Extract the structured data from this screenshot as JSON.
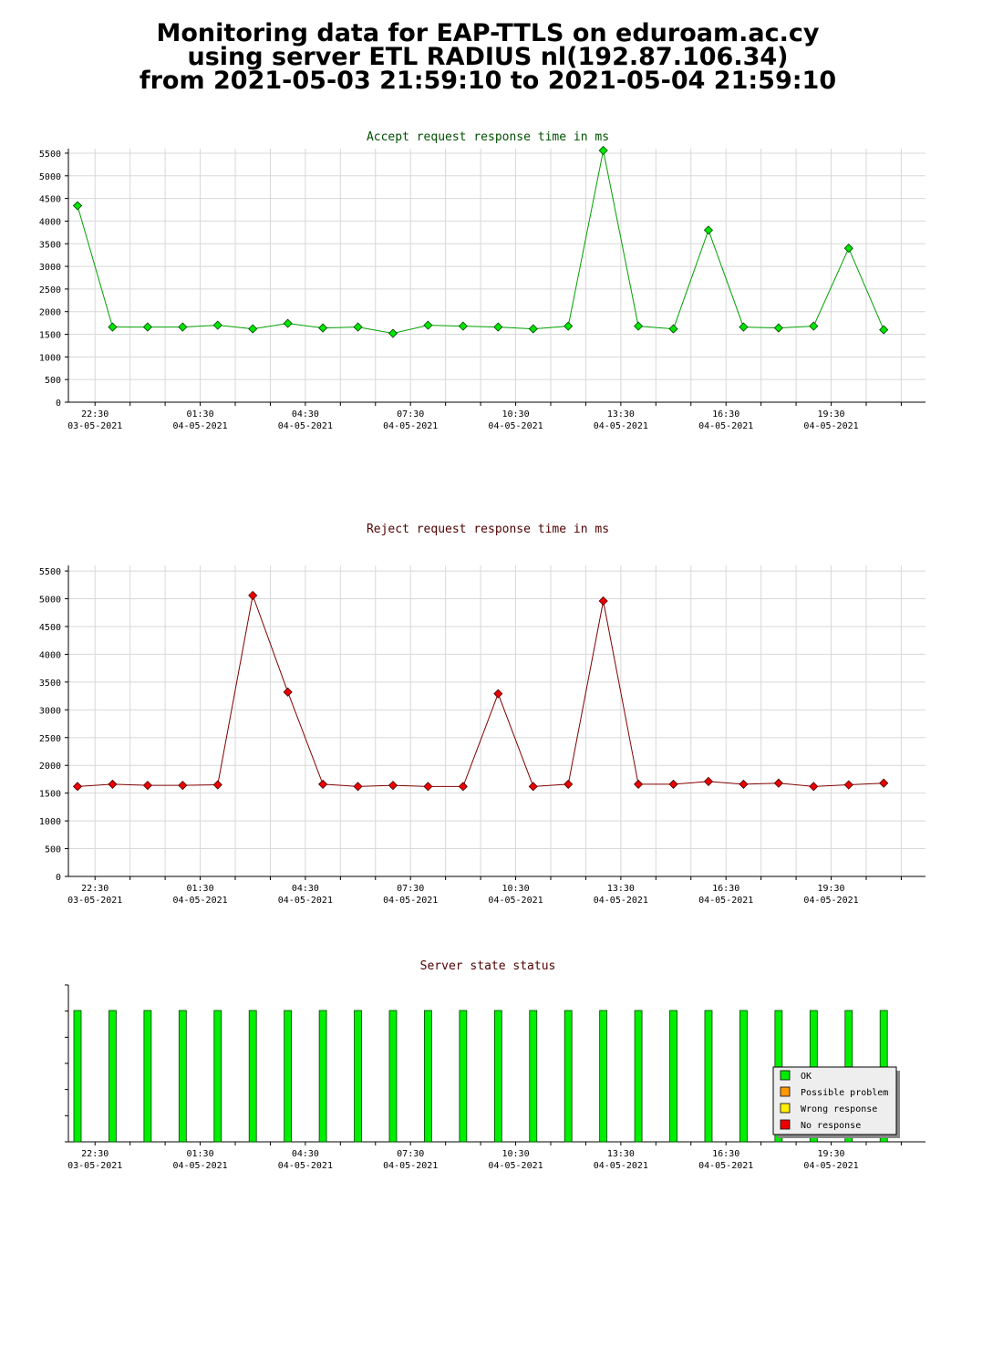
{
  "header": {
    "title_line1": "Monitoring data for EAP-TTLS on eduroam.ac.cy",
    "title_line2": "using server ETL RADIUS nl(192.87.106.34)",
    "title_line3": "from 2021-05-03 21:59:10 to 2021-05-04 21:59:10"
  },
  "colors": {
    "accept_series": "#00a000",
    "accept_point": "#00e600",
    "reject_series": "#800000",
    "reject_point": "#ee0000",
    "accept_title": "#005000",
    "reject_title": "#500000",
    "status_title": "#500000",
    "grid": "#d8d8d8",
    "status_ok": "#00ee00",
    "status_possible_problem": "#ff9900",
    "status_wrong_response": "#ffee00",
    "status_no_response": "#ee0000"
  },
  "time_ticks": [
    {
      "time": "22:30",
      "date": "03-05-2021"
    },
    {
      "time": "01:30",
      "date": "04-05-2021"
    },
    {
      "time": "04:30",
      "date": "04-05-2021"
    },
    {
      "time": "07:30",
      "date": "04-05-2021"
    },
    {
      "time": "10:30",
      "date": "04-05-2021"
    },
    {
      "time": "13:30",
      "date": "04-05-2021"
    },
    {
      "time": "16:30",
      "date": "04-05-2021"
    },
    {
      "time": "19:30",
      "date": "04-05-2021"
    }
  ],
  "chart_data": [
    {
      "type": "line",
      "title": "Accept request response time in ms",
      "x_axis": "time",
      "xlim": [
        "2021-05-03 22:00",
        "2021-05-04 21:59"
      ],
      "ylim": [
        0,
        5600
      ],
      "yticks": [
        0,
        500,
        1000,
        1500,
        2000,
        2500,
        3000,
        3500,
        4000,
        4500,
        5000,
        5500
      ],
      "grid": true,
      "x": [
        "2021-05-03 22:00",
        "2021-05-03 23:00",
        "2021-05-04 00:00",
        "2021-05-04 01:00",
        "2021-05-04 02:00",
        "2021-05-04 03:00",
        "2021-05-04 04:00",
        "2021-05-04 05:00",
        "2021-05-04 06:00",
        "2021-05-04 07:00",
        "2021-05-04 08:00",
        "2021-05-04 09:00",
        "2021-05-04 10:00",
        "2021-05-04 11:00",
        "2021-05-04 12:00",
        "2021-05-04 13:00",
        "2021-05-04 14:00",
        "2021-05-04 15:00",
        "2021-05-04 16:00",
        "2021-05-04 17:00",
        "2021-05-04 18:00",
        "2021-05-04 19:00",
        "2021-05-04 20:00",
        "2021-05-04 21:00"
      ],
      "values": [
        4340,
        1660,
        1660,
        1660,
        1700,
        1620,
        1740,
        1640,
        1660,
        1520,
        1700,
        1680,
        1660,
        1620,
        1680,
        5560,
        1680,
        1620,
        3800,
        1660,
        1640,
        1680,
        3400,
        1600
      ]
    },
    {
      "type": "line",
      "title": "Reject request response time in ms",
      "x_axis": "time",
      "xlim": [
        "2021-05-03 22:00",
        "2021-05-04 21:59"
      ],
      "ylim": [
        0,
        5600
      ],
      "yticks": [
        0,
        500,
        1000,
        1500,
        2000,
        2500,
        3000,
        3500,
        4000,
        4500,
        5000,
        5500
      ],
      "grid": true,
      "x": [
        "2021-05-03 22:00",
        "2021-05-03 23:00",
        "2021-05-04 00:00",
        "2021-05-04 01:00",
        "2021-05-04 02:00",
        "2021-05-04 03:00",
        "2021-05-04 04:00",
        "2021-05-04 05:00",
        "2021-05-04 06:00",
        "2021-05-04 07:00",
        "2021-05-04 08:00",
        "2021-05-04 09:00",
        "2021-05-04 10:00",
        "2021-05-04 11:00",
        "2021-05-04 12:00",
        "2021-05-04 13:00",
        "2021-05-04 14:00",
        "2021-05-04 15:00",
        "2021-05-04 16:00",
        "2021-05-04 17:00",
        "2021-05-04 18:00",
        "2021-05-04 19:00",
        "2021-05-04 20:00",
        "2021-05-04 21:00"
      ],
      "values": [
        1620,
        1660,
        1640,
        1640,
        1650,
        5060,
        3320,
        1660,
        1620,
        1640,
        1620,
        1620,
        3290,
        1620,
        1660,
        4960,
        1660,
        1660,
        1710,
        1660,
        1680,
        1620,
        1650,
        1680
      ]
    },
    {
      "type": "bar",
      "title": "Server state status",
      "x_axis": "time",
      "xlim": [
        "2021-05-03 22:00",
        "2021-05-04 21:59"
      ],
      "x": [
        "2021-05-03 22:00",
        "2021-05-03 23:00",
        "2021-05-04 00:00",
        "2021-05-04 01:00",
        "2021-05-04 02:00",
        "2021-05-04 03:00",
        "2021-05-04 04:00",
        "2021-05-04 05:00",
        "2021-05-04 06:00",
        "2021-05-04 07:00",
        "2021-05-04 08:00",
        "2021-05-04 09:00",
        "2021-05-04 10:00",
        "2021-05-04 11:00",
        "2021-05-04 12:00",
        "2021-05-04 13:00",
        "2021-05-04 14:00",
        "2021-05-04 15:00",
        "2021-05-04 16:00",
        "2021-05-04 17:00",
        "2021-05-04 18:00",
        "2021-05-04 19:00",
        "2021-05-04 20:00",
        "2021-05-04 21:00"
      ],
      "status": [
        "OK",
        "OK",
        "OK",
        "OK",
        "OK",
        "OK",
        "OK",
        "OK",
        "OK",
        "OK",
        "OK",
        "OK",
        "OK",
        "OK",
        "OK",
        "OK",
        "OK",
        "OK",
        "OK",
        "OK",
        "OK",
        "OK",
        "OK",
        "OK"
      ],
      "legend_position": "bottom-right",
      "legend": [
        "OK",
        "Possible problem",
        "Wrong response",
        "No response"
      ]
    }
  ]
}
